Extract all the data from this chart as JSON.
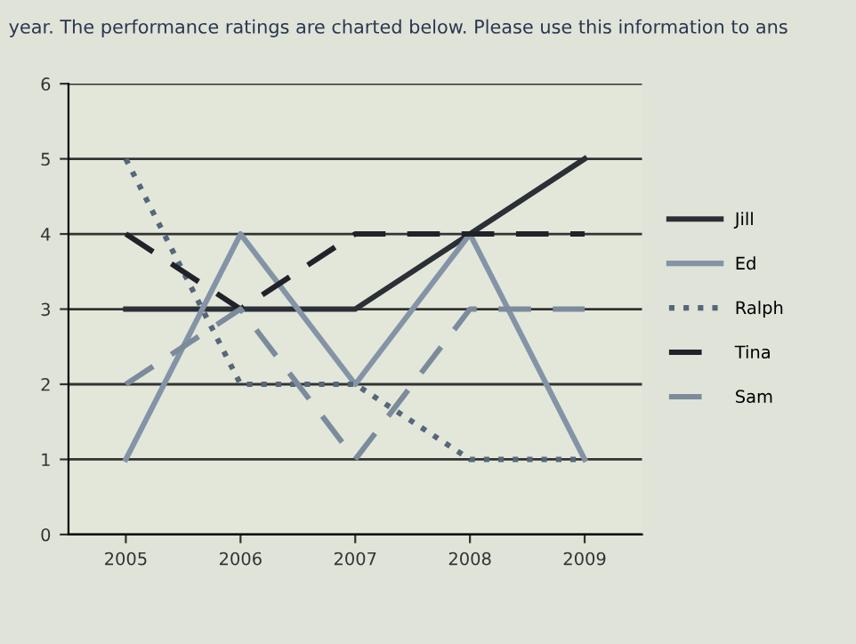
{
  "chart_data": {
    "type": "line",
    "annotations": [
      "year. The performance ratings are charted below. Please use this information to ans"
    ],
    "categories": [
      "2005",
      "2006",
      "2007",
      "2008",
      "2009"
    ],
    "series": [
      {
        "name": "Jill",
        "color": "#2b2f36",
        "line_style": "solid",
        "values": [
          3,
          3,
          3,
          4,
          5
        ]
      },
      {
        "name": "Ed",
        "color": "#8494a6",
        "line_style": "solid",
        "values": [
          1,
          4,
          2,
          4,
          1
        ]
      },
      {
        "name": "Ralph",
        "color": "#56677a",
        "line_style": "dotted",
        "values": [
          5,
          2,
          2,
          1,
          1
        ]
      },
      {
        "name": "Tina",
        "color": "#1f2329",
        "line_style": "dashed",
        "values": [
          4,
          3,
          4,
          4,
          4
        ]
      },
      {
        "name": "Sam",
        "color": "#7c8b9c",
        "line_style": "dashed",
        "values": [
          2,
          3,
          1,
          3,
          3
        ]
      }
    ],
    "ylim": [
      0,
      6
    ],
    "yticks": [
      0,
      1,
      2,
      3,
      4,
      5,
      6
    ],
    "grid": "y",
    "legend": "right",
    "marker": "none"
  }
}
